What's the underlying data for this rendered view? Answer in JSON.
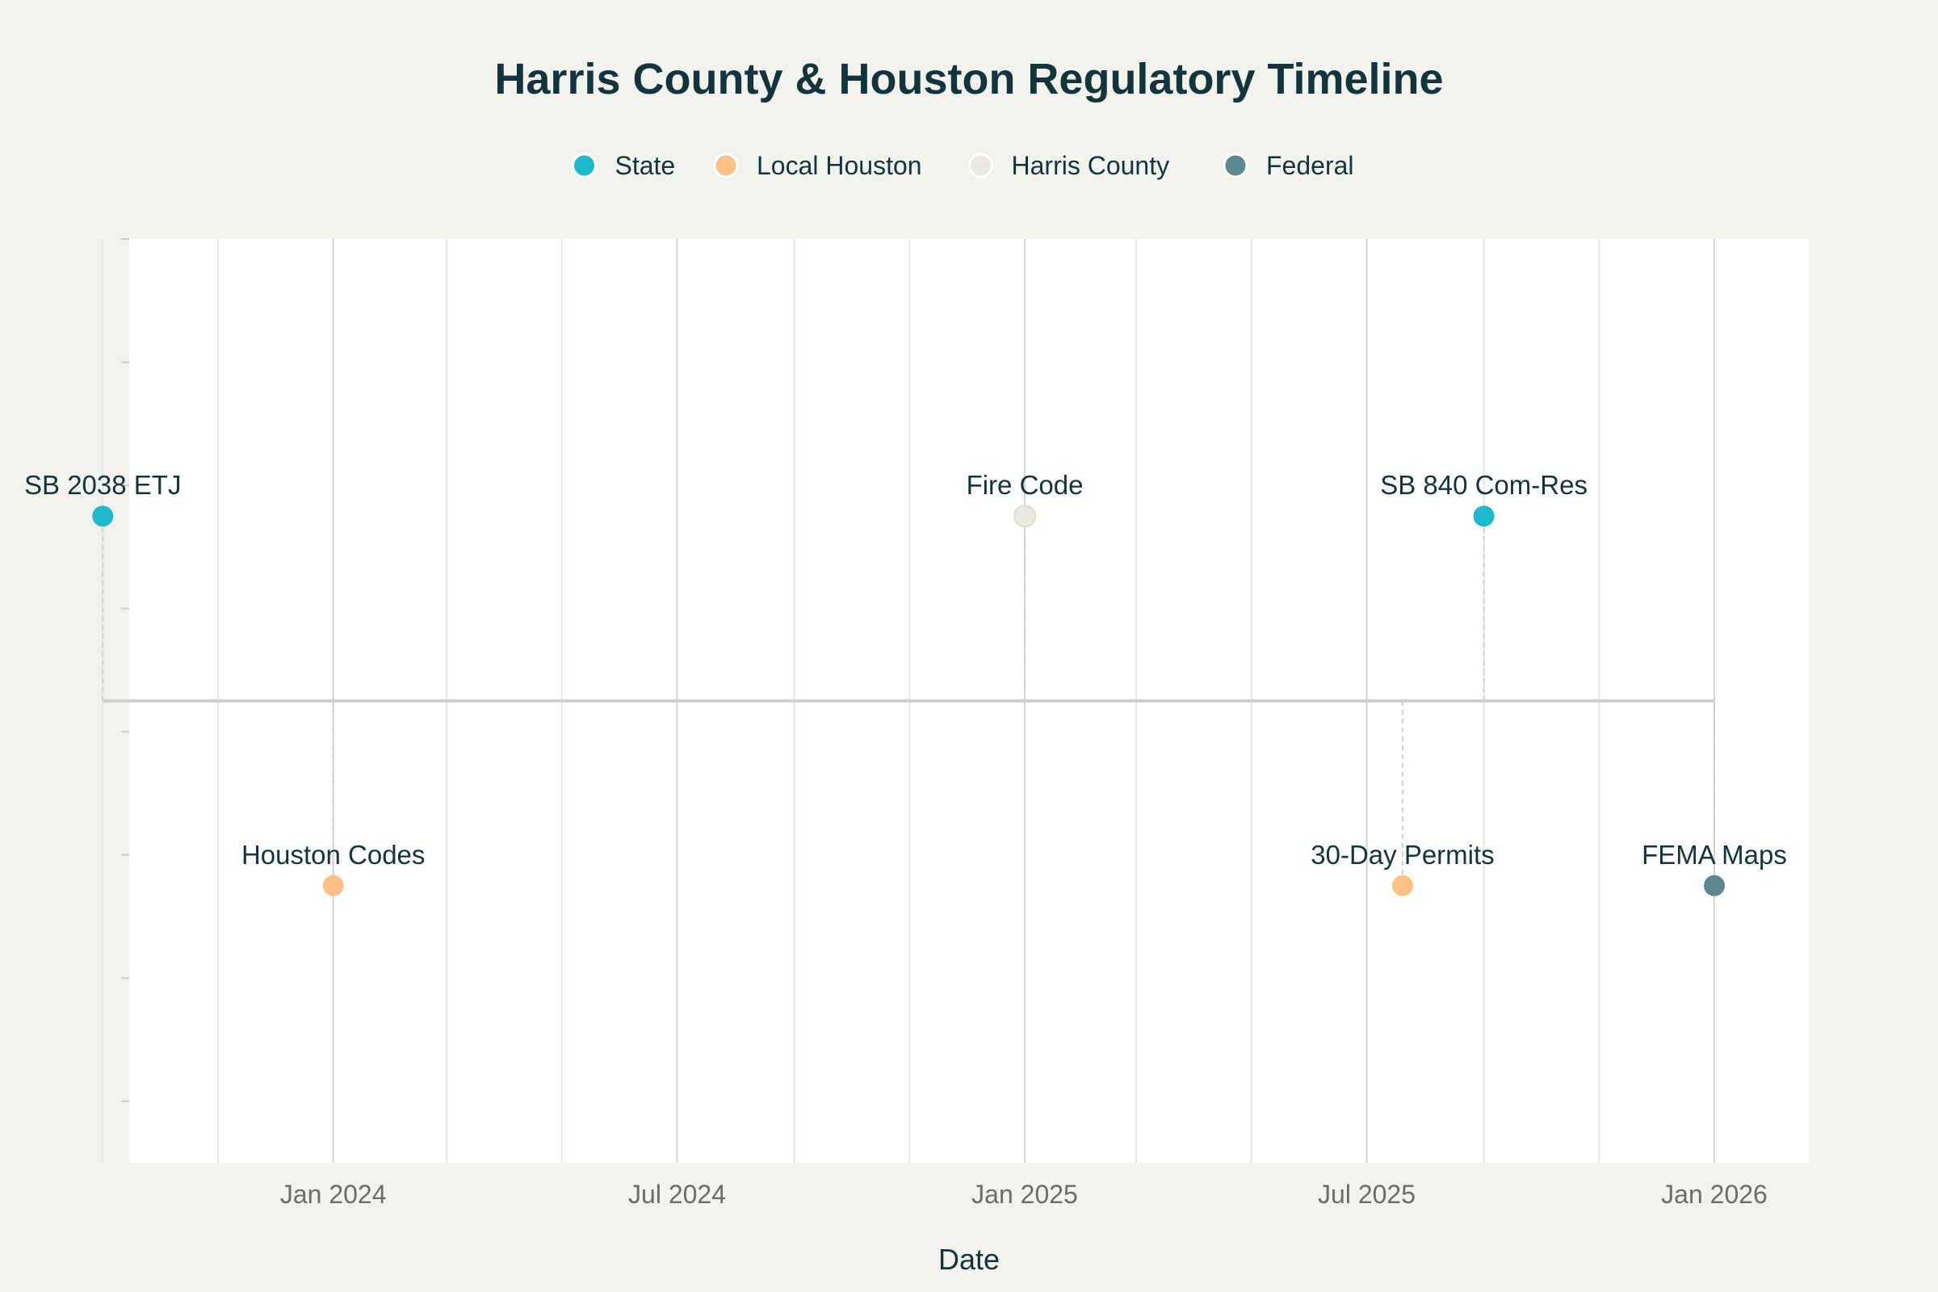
{
  "chart_data": {
    "type": "scatter",
    "title": "Harris County & Houston Regulatory Timeline",
    "xlabel": "Date",
    "ylabel": "",
    "x_type": "date",
    "xlim": [
      "2023-09-15",
      "2026-02-20"
    ],
    "ylim": [
      -0.75,
      0.75
    ],
    "x_ticks": [
      {
        "date": "2024-01-01",
        "label": "Jan 2024"
      },
      {
        "date": "2024-07-01",
        "label": "Jul 2024"
      },
      {
        "date": "2025-01-01",
        "label": "Jan 2025"
      },
      {
        "date": "2025-07-01",
        "label": "Jul 2025"
      },
      {
        "date": "2026-01-01",
        "label": "Jan 2026"
      }
    ],
    "x_minor_ticks": [
      "2023-10-01",
      "2023-11-01",
      "2023-12-01",
      "2024-02-01",
      "2024-03-01",
      "2024-04-01",
      "2024-05-01",
      "2024-06-01",
      "2024-08-01",
      "2024-09-01",
      "2024-10-01",
      "2024-11-01",
      "2024-12-01",
      "2025-02-01",
      "2025-03-01",
      "2025-04-01",
      "2025-05-01",
      "2025-06-01",
      "2025-08-01",
      "2025-09-01",
      "2025-10-01",
      "2025-11-01",
      "2025-12-01",
      "2026-02-01"
    ],
    "x_vgrid_dates": [
      "2023-09-01",
      "2023-11-01",
      "2024-01-01",
      "2024-03-01",
      "2024-05-01",
      "2024-07-01",
      "2024-09-01",
      "2024-11-01",
      "2025-01-01",
      "2025-03-01",
      "2025-05-01",
      "2025-07-01",
      "2025-09-01",
      "2025-11-01",
      "2026-01-01"
    ],
    "baseline": {
      "from": "2023-09-01",
      "to": "2026-01-01",
      "y": 0
    },
    "grid": true,
    "legend_position": "top-center",
    "series": [
      {
        "name": "State",
        "color": "#1fb8cd"
      },
      {
        "name": "Local Houston",
        "color": "#ffc185"
      },
      {
        "name": "Harris County",
        "color": "#eceae0"
      },
      {
        "name": "Federal",
        "color": "#5d878f"
      }
    ],
    "events": [
      {
        "label": "SB 2038 ETJ",
        "date": "2023-09-01",
        "y": 0.3,
        "category": "State"
      },
      {
        "label": "Houston Codes",
        "date": "2024-01-01",
        "y": -0.3,
        "category": "Local Houston"
      },
      {
        "label": "Fire Code",
        "date": "2025-01-01",
        "y": 0.3,
        "category": "Harris County"
      },
      {
        "label": "30-Day Permits",
        "date": "2025-07-20",
        "y": -0.3,
        "category": "Local Houston"
      },
      {
        "label": "SB 840 Com-Res",
        "date": "2025-09-01",
        "y": 0.3,
        "category": "State"
      },
      {
        "label": "FEMA Maps",
        "date": "2026-01-01",
        "y": -0.3,
        "category": "Federal"
      }
    ]
  },
  "colors": {
    "background": "#f3f3ee",
    "plot_background": "#ffffff",
    "text": "#13343b",
    "tick_text": "#6b6b6b",
    "grid": "#e6e6e6",
    "major_grid": "#d5d5d5",
    "baseline": "#d0d0d0",
    "connector": "#cfcfcf"
  }
}
